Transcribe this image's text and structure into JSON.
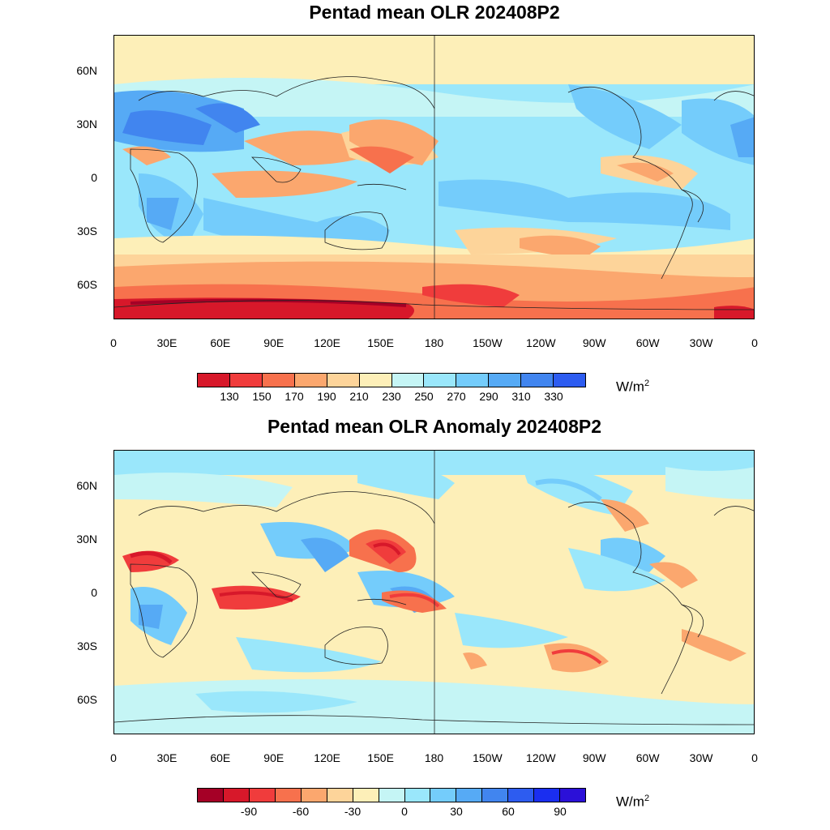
{
  "panels": [
    {
      "id": "olr",
      "title": "Pentad mean OLR 202408P2",
      "lat_labels": [
        "60N",
        "30N",
        "0",
        "30S",
        "60S"
      ],
      "lon_labels": [
        "0",
        "30E",
        "60E",
        "90E",
        "120E",
        "150E",
        "180",
        "150W",
        "120W",
        "90W",
        "60W",
        "30W",
        "0"
      ],
      "colorbar": {
        "colors": [
          "#d7182a",
          "#f03c3c",
          "#f7714d",
          "#fba76e",
          "#fdd49a",
          "#fdefb8",
          "#c5f5f5",
          "#9ae7fb",
          "#74ccfb",
          "#56aaf5",
          "#4185ef",
          "#2d5cf0"
        ],
        "labels": [
          "130",
          "150",
          "170",
          "190",
          "210",
          "230",
          "250",
          "270",
          "290",
          "310",
          "330"
        ],
        "units": "W/m",
        "units_sup": "2"
      }
    },
    {
      "id": "anomaly",
      "title": "Pentad mean OLR Anomaly 202408P2",
      "lat_labels": [
        "60N",
        "30N",
        "0",
        "30S",
        "60S"
      ],
      "lon_labels": [
        "0",
        "30E",
        "60E",
        "90E",
        "120E",
        "150E",
        "180",
        "150W",
        "120W",
        "90W",
        "60W",
        "30W",
        "0"
      ],
      "colorbar": {
        "colors": [
          "#a50026",
          "#d7182a",
          "#f03c3c",
          "#f7714d",
          "#fba76e",
          "#fdd49a",
          "#fdefb8",
          "#c5f5f5",
          "#9ae7fb",
          "#74ccfb",
          "#56aaf5",
          "#4185ef",
          "#2d5cf0",
          "#1a2ef0",
          "#2b10d8"
        ],
        "labels": [
          "-90",
          "-60",
          "-30",
          "0",
          "30",
          "60",
          "90"
        ],
        "units": "W/m",
        "units_sup": "2"
      }
    }
  ]
}
